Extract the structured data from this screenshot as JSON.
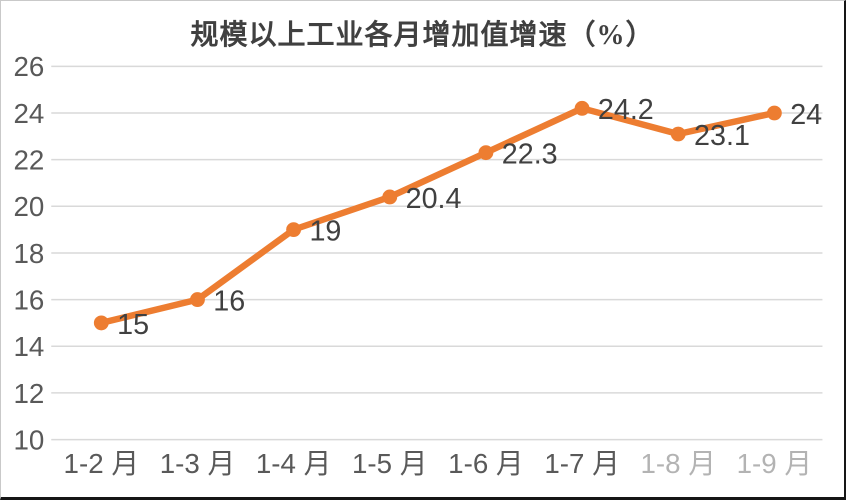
{
  "chart_data": {
    "type": "line",
    "title": "规模以上工业各月增加值增速（%）",
    "categories": [
      "1-2 月",
      "1-3 月",
      "1-4 月",
      "1-5 月",
      "1-6 月",
      "1-7 月",
      "1-8 月",
      "1-9 月"
    ],
    "series": [
      {
        "values": [
          15,
          16,
          19,
          20.4,
          22.3,
          24.2,
          23.1,
          24
        ]
      }
    ],
    "data_labels": [
      "15",
      "16",
      "19",
      "20.4",
      "22.3",
      "24.2",
      "23.1",
      "24"
    ],
    "yticks": [
      "10",
      "12",
      "14",
      "16",
      "18",
      "20",
      "22",
      "24",
      "26"
    ],
    "ylim": [
      10,
      26
    ],
    "ytick_step": 2,
    "xlabel": "",
    "ylabel": "",
    "grid": true,
    "legend_position": "none",
    "colors": {
      "line": "#ED7D31",
      "marker": "#ED7D31",
      "gridline": "#D9D9D9",
      "axis_tick_label": "#595959",
      "data_label": "#404040",
      "title": "#404040",
      "background": "#FFFFFF"
    }
  }
}
